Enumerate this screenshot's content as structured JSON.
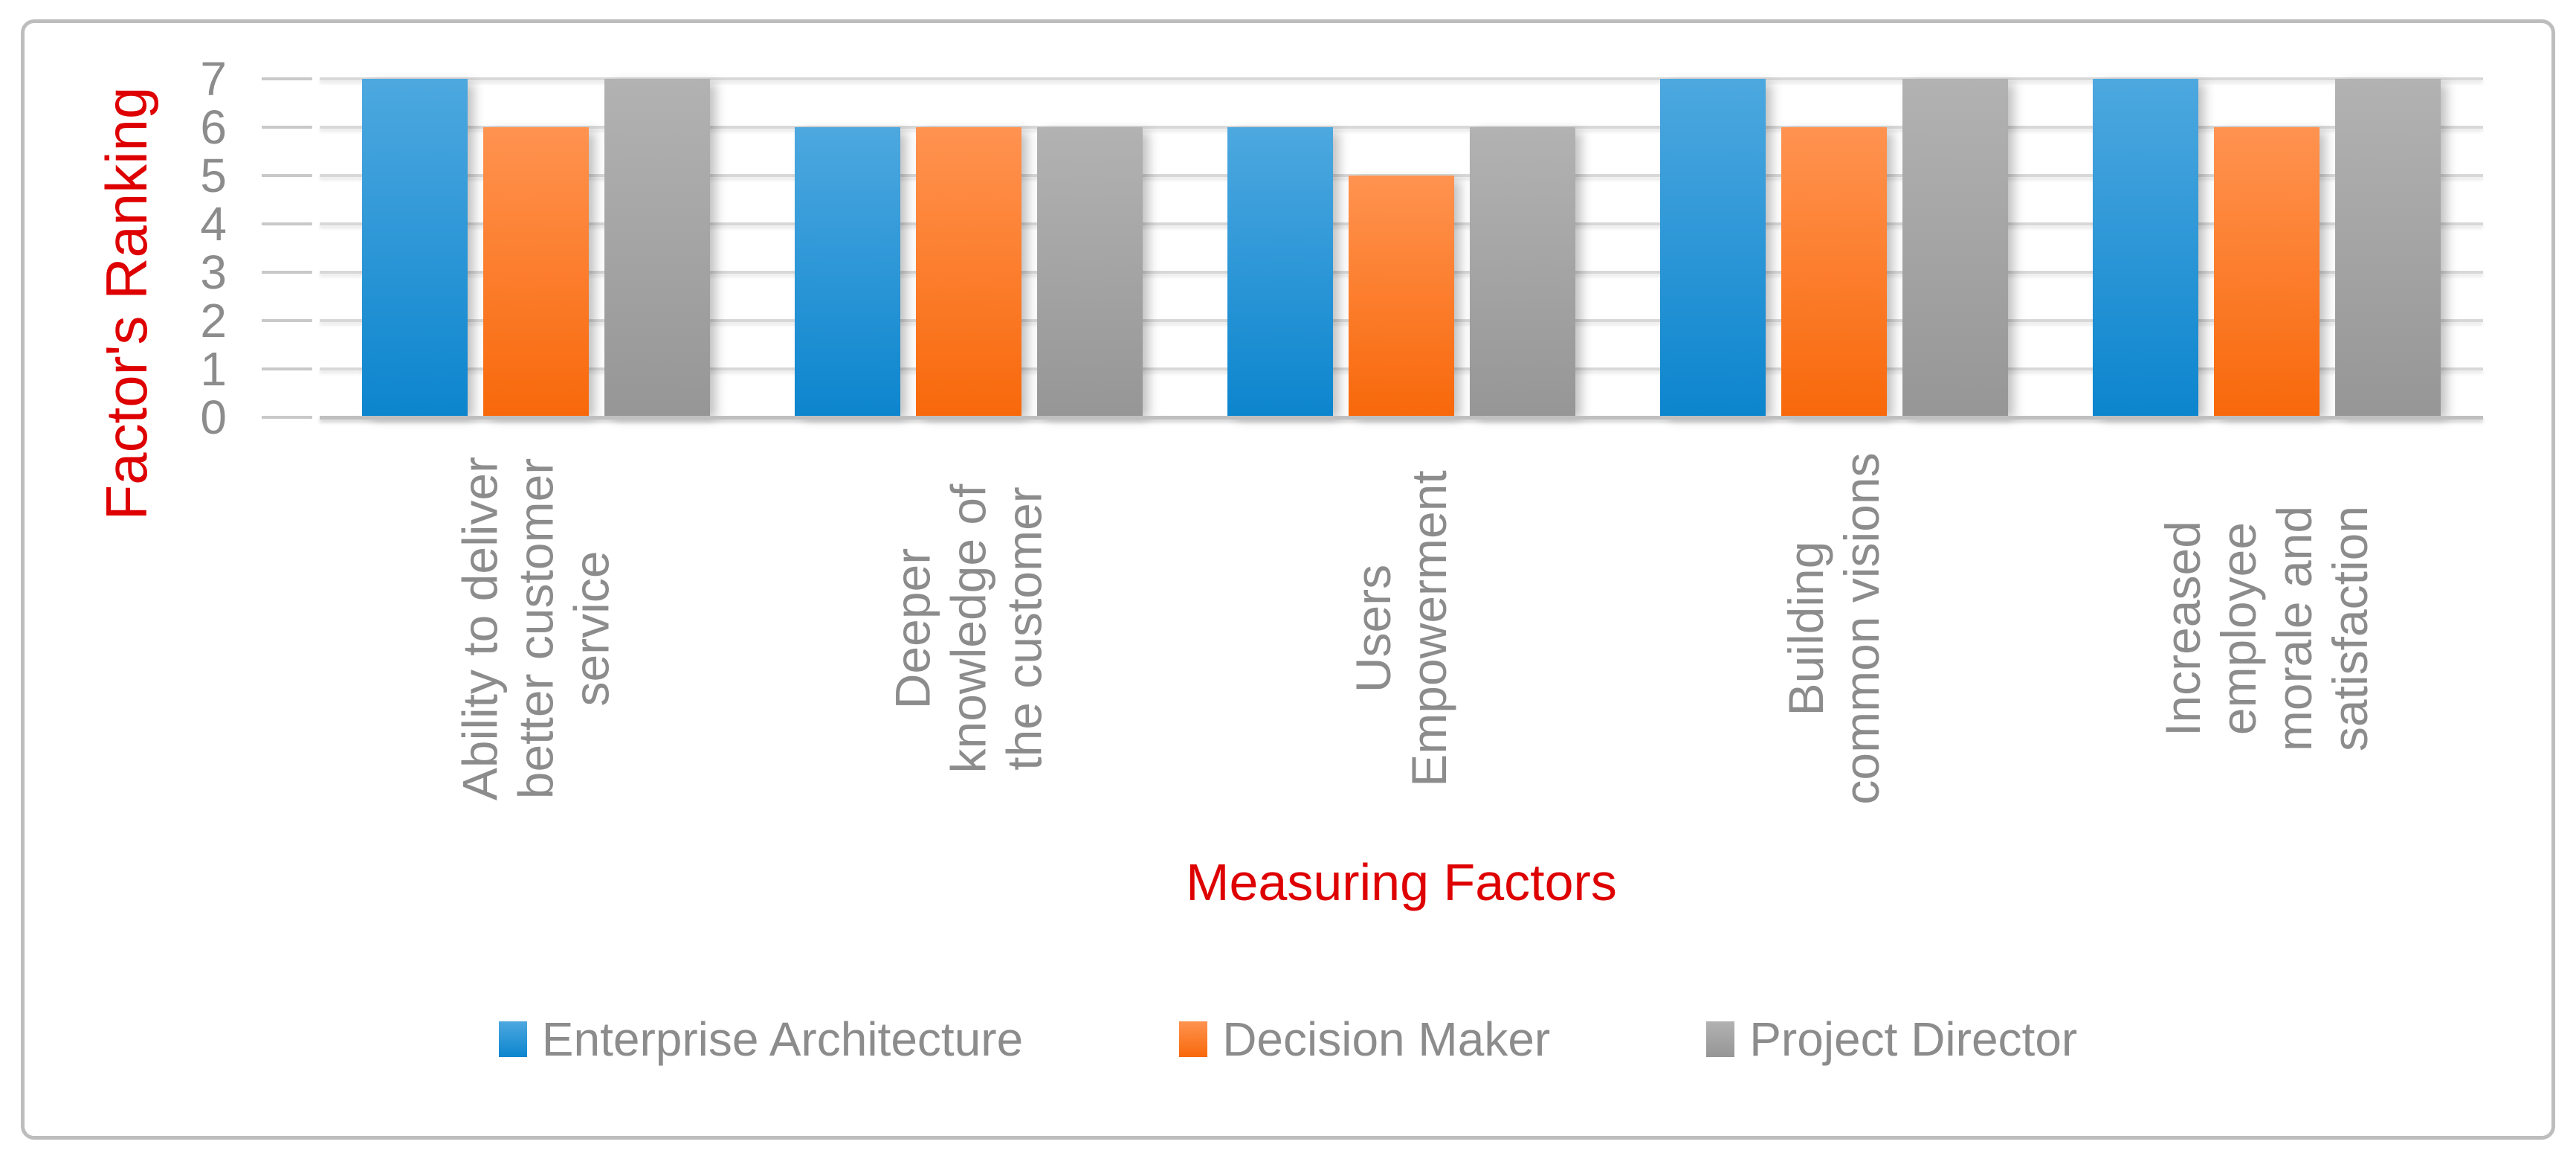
{
  "chart_data": {
    "type": "bar",
    "title": "",
    "xlabel": "Measuring Factors",
    "ylabel": "Factor's Ranking",
    "ylim": [
      0,
      7
    ],
    "yticks": [
      0,
      1,
      2,
      3,
      4,
      5,
      6,
      7
    ],
    "grid": true,
    "legend_position": "bottom",
    "categories": [
      "Ability to deliver better customer service",
      "Deeper knowledge of the customer",
      "Users Empowerment",
      "Building common visions",
      "Increased employee morale and satisfaction"
    ],
    "category_display_lines": [
      [
        "Ability to deliver",
        "better customer",
        "service"
      ],
      [
        "Deeper",
        "knowledge of",
        "the customer"
      ],
      [
        "Users",
        "Empowerment"
      ],
      [
        "Building",
        "common visions"
      ],
      [
        "Increased",
        "employee",
        "morale and",
        "satisfaction"
      ]
    ],
    "series": [
      {
        "name": "Enterprise Architecture",
        "values": [
          7,
          6,
          6,
          7,
          7
        ],
        "color": "#2E9BD6",
        "gradient_top": "#4DA8DF",
        "gradient_bottom": "#0C85CE"
      },
      {
        "name": "Decision Maker",
        "values": [
          6,
          6,
          5,
          6,
          6
        ],
        "color": "#F97C1F",
        "gradient_top": "#FF9350",
        "gradient_bottom": "#F8680A"
      },
      {
        "name": "Project Director",
        "values": [
          7,
          6,
          6,
          7,
          7
        ],
        "color": "#A6A6A6",
        "gradient_top": "#B2B2B2",
        "gradient_bottom": "#969696"
      }
    ]
  },
  "styles": {
    "axis_title_color": "#DE0000",
    "text_gray": "#8C8C8C",
    "gridline_color": "#D8D8D8",
    "axis_line_color": "#BFBFBF",
    "tick_color": "#C9C9C9",
    "frame_border_color": "#BDBDBD",
    "background": "#FFFFFF"
  }
}
